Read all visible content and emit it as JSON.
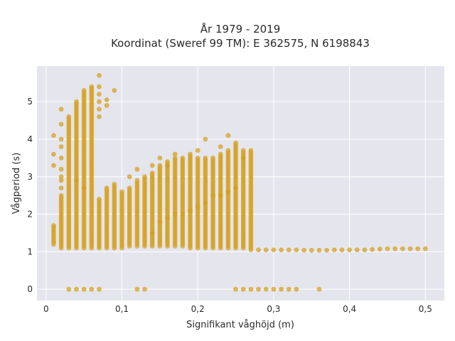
{
  "chart_data": {
    "type": "scatter",
    "title_line1": "År 1979 - 2019",
    "title_line2": "Koordinat (Sweref 99 TM): E 362575, N 6198843",
    "xlabel": "Signifikant våghöjd (m)",
    "ylabel": "Vågperiod (s)",
    "xlim": [
      -0.012,
      0.525
    ],
    "ylim": [
      -0.3,
      5.95
    ],
    "x_ticks": [
      0,
      0.1,
      0.2,
      0.3,
      0.4,
      0.5
    ],
    "x_tick_labels": [
      "0",
      "0,1",
      "0,2",
      "0,3",
      "0,4",
      "0,5"
    ],
    "y_ticks": [
      0,
      1,
      2,
      3,
      4,
      5
    ],
    "y_tick_labels": [
      "0",
      "1",
      "2",
      "3",
      "4",
      "5"
    ],
    "grid": true,
    "background": "#e5e5ee",
    "marker_color": "#d4a017",
    "columns": [
      {
        "x": 0.01,
        "ymin": 1.2,
        "ymax": 1.7,
        "extra": [
          3.3,
          3.6,
          4.1
        ]
      },
      {
        "x": 0.02,
        "ymin": 1.1,
        "ymax": 2.5,
        "extra": [
          2.7,
          2.9,
          3.0,
          3.2,
          3.5,
          3.8,
          4.0,
          4.4,
          4.8
        ]
      },
      {
        "x": 0.03,
        "ymin": 1.1,
        "ymax": 4.6,
        "extra": [
          0
        ]
      },
      {
        "x": 0.04,
        "ymin": 1.1,
        "ymax": 5.0,
        "extra": [
          0,
          2.9
        ]
      },
      {
        "x": 0.05,
        "ymin": 1.1,
        "ymax": 5.3,
        "extra": [
          0,
          2.7
        ]
      },
      {
        "x": 0.06,
        "ymin": 1.1,
        "ymax": 5.4,
        "extra": [
          0
        ]
      },
      {
        "x": 0.07,
        "ymin": 1.1,
        "ymax": 2.4,
        "extra": [
          0,
          4.6,
          4.8,
          5.0,
          5.2,
          5.4,
          5.7
        ]
      },
      {
        "x": 0.08,
        "ymin": 1.1,
        "ymax": 2.7,
        "extra": [
          4.9,
          5.05
        ]
      },
      {
        "x": 0.09,
        "ymin": 1.1,
        "ymax": 2.8,
        "extra": [
          5.3
        ]
      },
      {
        "x": 0.1,
        "ymin": 1.1,
        "ymax": 2.6,
        "extra": []
      },
      {
        "x": 0.11,
        "ymin": 1.15,
        "ymax": 2.7,
        "extra": [
          3.0
        ]
      },
      {
        "x": 0.12,
        "ymin": 1.15,
        "ymax": 2.9,
        "extra": [
          0,
          3.2
        ]
      },
      {
        "x": 0.13,
        "ymin": 1.15,
        "ymax": 3.0,
        "extra": [
          0
        ]
      },
      {
        "x": 0.14,
        "ymin": 1.15,
        "ymax": 3.1,
        "extra": [
          1.5,
          3.3
        ]
      },
      {
        "x": 0.15,
        "ymin": 1.15,
        "ymax": 3.3,
        "extra": [
          1.8,
          3.5
        ]
      },
      {
        "x": 0.16,
        "ymin": 1.15,
        "ymax": 3.4,
        "extra": [
          1.9,
          3.3
        ]
      },
      {
        "x": 0.17,
        "ymin": 1.15,
        "ymax": 3.5,
        "extra": [
          2.0,
          3.6
        ]
      },
      {
        "x": 0.18,
        "ymin": 1.15,
        "ymax": 3.5,
        "extra": [
          2.0
        ]
      },
      {
        "x": 0.19,
        "ymin": 1.1,
        "ymax": 3.6,
        "extra": [
          2.1
        ]
      },
      {
        "x": 0.2,
        "ymin": 1.1,
        "ymax": 3.5,
        "extra": [
          2.2,
          3.7
        ]
      },
      {
        "x": 0.21,
        "ymin": 1.1,
        "ymax": 3.5,
        "extra": [
          2.3,
          4.0
        ]
      },
      {
        "x": 0.22,
        "ymin": 1.1,
        "ymax": 3.5,
        "extra": [
          2.5
        ]
      },
      {
        "x": 0.23,
        "ymin": 1.1,
        "ymax": 3.6,
        "extra": [
          2.5,
          3.8
        ]
      },
      {
        "x": 0.24,
        "ymin": 1.1,
        "ymax": 3.7,
        "extra": [
          2.6,
          4.1
        ]
      },
      {
        "x": 0.25,
        "ymin": 1.1,
        "ymax": 3.9,
        "extra": [
          0,
          2.7
        ]
      },
      {
        "x": 0.26,
        "ymin": 1.1,
        "ymax": 3.7,
        "extra": [
          0,
          3.5
        ]
      },
      {
        "x": 0.27,
        "ymin": 1.05,
        "ymax": 3.7,
        "extra": [
          0
        ]
      }
    ],
    "baseline_points": [
      [
        0.28,
        1.05
      ],
      [
        0.29,
        1.05
      ],
      [
        0.3,
        1.05
      ],
      [
        0.31,
        1.05
      ],
      [
        0.32,
        1.05
      ],
      [
        0.33,
        1.05
      ],
      [
        0.34,
        1.04
      ],
      [
        0.35,
        1.04
      ],
      [
        0.36,
        1.04
      ],
      [
        0.37,
        1.04
      ],
      [
        0.38,
        1.05
      ],
      [
        0.39,
        1.05
      ],
      [
        0.4,
        1.05
      ],
      [
        0.41,
        1.05
      ],
      [
        0.42,
        1.05
      ],
      [
        0.43,
        1.06
      ],
      [
        0.44,
        1.07
      ],
      [
        0.45,
        1.08
      ],
      [
        0.46,
        1.08
      ],
      [
        0.47,
        1.08
      ],
      [
        0.48,
        1.08
      ],
      [
        0.49,
        1.08
      ],
      [
        0.5,
        1.08
      ]
    ],
    "zero_points": [
      0.28,
      0.29,
      0.3,
      0.31,
      0.32,
      0.33,
      0.36
    ],
    "step": 0.06
  }
}
